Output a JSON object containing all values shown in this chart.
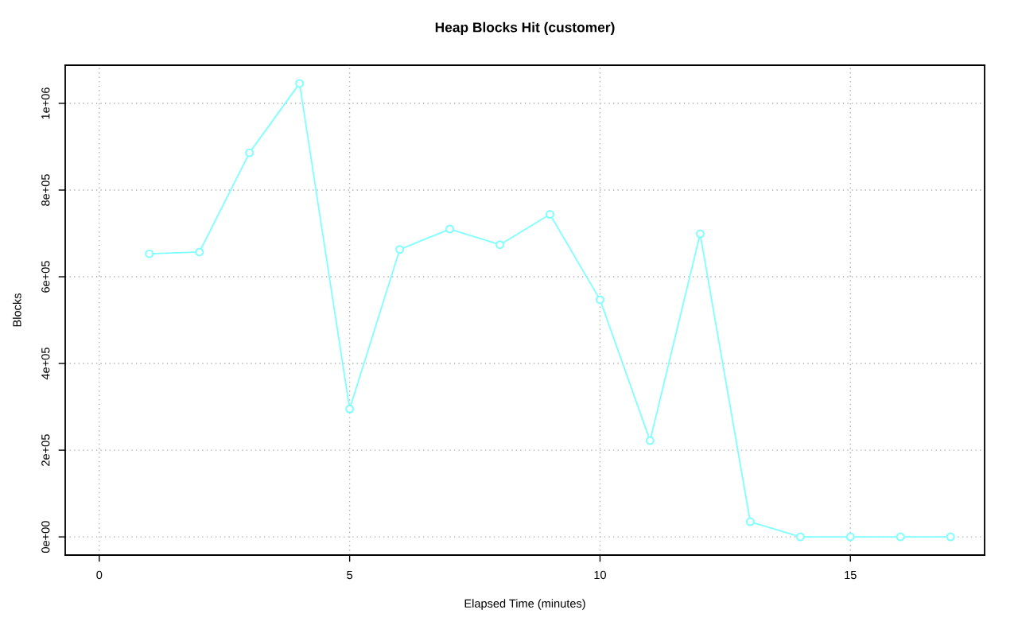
{
  "chart_data": {
    "type": "line",
    "title": "Heap Blocks Hit (customer)",
    "xlabel": "Elapsed Time (minutes)",
    "ylabel": "Blocks",
    "x": [
      1,
      2,
      3,
      4,
      5,
      6,
      7,
      8,
      9,
      10,
      11,
      12,
      13,
      14,
      15,
      16,
      17
    ],
    "series": [
      {
        "color": "#7fffff",
        "values": [
          653000,
          657000,
          886000,
          1046000,
          295000,
          663000,
          710000,
          674000,
          744000,
          547000,
          222000,
          699000,
          35000,
          0,
          0,
          0,
          0
        ]
      }
    ],
    "xlim": [
      -0.68,
      17.68
    ],
    "ylim": [
      -42000,
      1088000
    ],
    "xticks": [
      0,
      5,
      10,
      15
    ],
    "yticks": [
      {
        "value": 0,
        "label": "0e+00"
      },
      {
        "value": 200000,
        "label": "2e+05"
      },
      {
        "value": 400000,
        "label": "4e+05"
      },
      {
        "value": 600000,
        "label": "6e+05"
      },
      {
        "value": 800000,
        "label": "8e+05"
      },
      {
        "value": 1000000,
        "label": "1e+06"
      }
    ],
    "grid": true,
    "marker": "circle",
    "line_style": "solid"
  }
}
